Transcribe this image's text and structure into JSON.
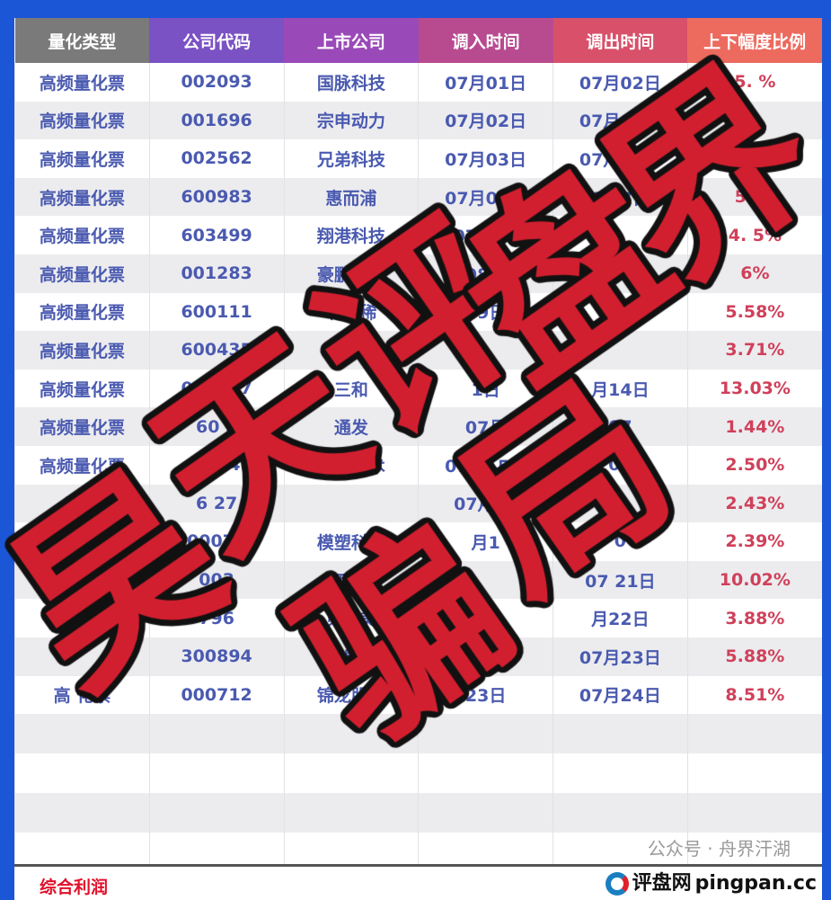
{
  "table": {
    "headers": [
      {
        "label": "量化类型",
        "color": "#7a7a7a"
      },
      {
        "label": "公司代码",
        "color": "#7b52c4"
      },
      {
        "label": "上市公司",
        "color": "#9a4ab8"
      },
      {
        "label": "调入时间",
        "color": "#b84a90"
      },
      {
        "label": "调出时间",
        "color": "#d8506a"
      },
      {
        "label": "上下幅度比例",
        "color": "#ec6a5e"
      }
    ],
    "rows": [
      [
        "高频量化票",
        "002093",
        "国脉科技",
        "07月01日",
        "07月02日",
        "5.  %"
      ],
      [
        "高频量化票",
        "001696",
        "宗申动力",
        "07月02日",
        "07月03日",
        ""
      ],
      [
        "高频量化票",
        "002562",
        "兄弟科技",
        "07月03日",
        "07月04日",
        ""
      ],
      [
        "高频量化票",
        "600983",
        "惠而浦",
        "07月04日",
        "0  07日",
        "56%"
      ],
      [
        "高频量化票",
        "603499",
        "翔港科技",
        "07月07",
        "",
        "4. 5%"
      ],
      [
        "高频量化票",
        "001283",
        "豪鹏科技",
        "  08日",
        "",
        "6%"
      ],
      [
        "高频量化票",
        "600111",
        "北方稀",
        "  09日",
        "07",
        "5.58%"
      ],
      [
        "高频量化票",
        "600435",
        "北",
        "",
        "",
        "3.71%"
      ],
      [
        "高频量化票",
        "003037",
        "三和",
        "  1日",
        "月14日",
        "13.03%"
      ],
      [
        "高频量化票",
        "60  2",
        "通发",
        "07月",
        "07",
        "1.44%"
      ],
      [
        "高频量化票",
        "3004",
        "道氏技术",
        "07月15日",
        "07",
        "2.50%"
      ],
      [
        "高频",
        "6  27",
        "",
        "07月  日",
        "",
        "2.43%"
      ],
      [
        "",
        "00070",
        "模塑科技",
        "月1",
        "0",
        "2.39%"
      ],
      [
        "",
        "003",
        "西藏",
        "",
        "07  21日",
        "10.02%"
      ],
      [
        "",
        "796",
        "贝斯美",
        "",
        "月22日",
        "3.88%"
      ],
      [
        "",
        "300894",
        "火星人",
        "",
        "07月23日",
        "5.88%"
      ],
      [
        "高  化票",
        "000712",
        "锦龙股份",
        "  23日",
        "07月24日",
        "8.51%"
      ]
    ]
  },
  "footer": {
    "label": "综合利润",
    "watermark": "公众号 · 舟界汗湖",
    "logo_text": "评盘网",
    "logo_domain": "pingpan.cc"
  },
  "overlay": {
    "line1": [
      "昊",
      "天",
      "评",
      "盘",
      "界"
    ],
    "line2": [
      "骗",
      "局"
    ],
    "color": "#d21f2f"
  }
}
